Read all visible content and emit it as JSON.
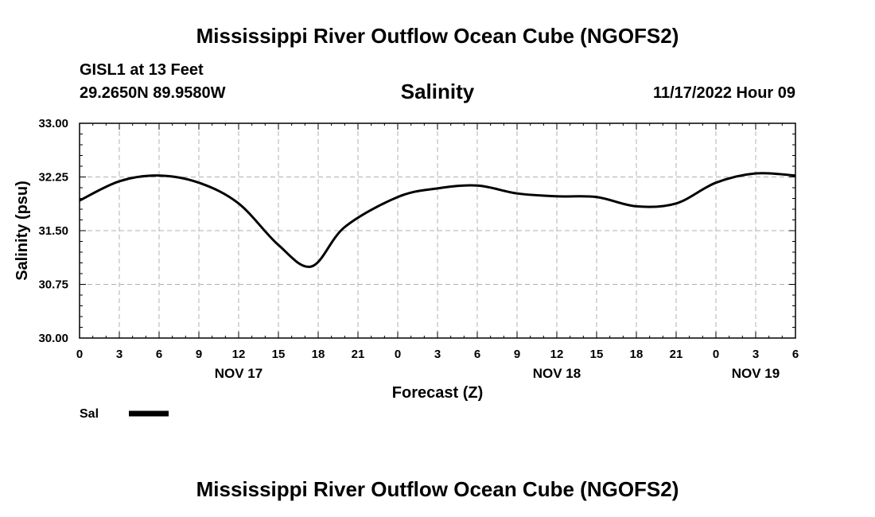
{
  "header": {
    "title": "Mississippi River Outflow Ocean Cube (NGOFS2)",
    "station": "GISL1 at 13 Feet",
    "coords": "29.2650N  89.9580W",
    "timestamp": "11/17/2022 Hour 09"
  },
  "footer": {
    "title": "Mississippi River Outflow Ocean Cube (NGOFS2)"
  },
  "chart_data": {
    "type": "line",
    "title": "Salinity",
    "xlabel": "Forecast (Z)",
    "ylabel": "Salinity (psu)",
    "xlim": [
      0,
      54
    ],
    "ylim": [
      30.0,
      33.0
    ],
    "grid": true,
    "yticks": [
      "30.00",
      "30.75",
      "31.50",
      "32.25",
      "33.00"
    ],
    "xticks": [
      "0",
      "3",
      "6",
      "9",
      "12",
      "15",
      "18",
      "21",
      "0",
      "3",
      "6",
      "9",
      "12",
      "15",
      "18",
      "21",
      "0",
      "3",
      "6"
    ],
    "day_labels": [
      {
        "label": "NOV 17",
        "hour": 12
      },
      {
        "label": "NOV 18",
        "hour": 36
      },
      {
        "label": "NOV 19",
        "hour": 51
      }
    ],
    "legend": [
      {
        "name": "Sal"
      }
    ],
    "series": [
      {
        "name": "Sal",
        "x": [
          0,
          3,
          6,
          9,
          12,
          15,
          17.5,
          20,
          24,
          27,
          30,
          33,
          36,
          39,
          42,
          45,
          48,
          51,
          54
        ],
        "values": [
          31.92,
          32.19,
          32.27,
          32.17,
          31.88,
          31.3,
          31.0,
          31.55,
          31.97,
          32.09,
          32.13,
          32.02,
          31.98,
          31.97,
          31.84,
          31.88,
          32.17,
          32.3,
          32.27
        ]
      }
    ]
  }
}
